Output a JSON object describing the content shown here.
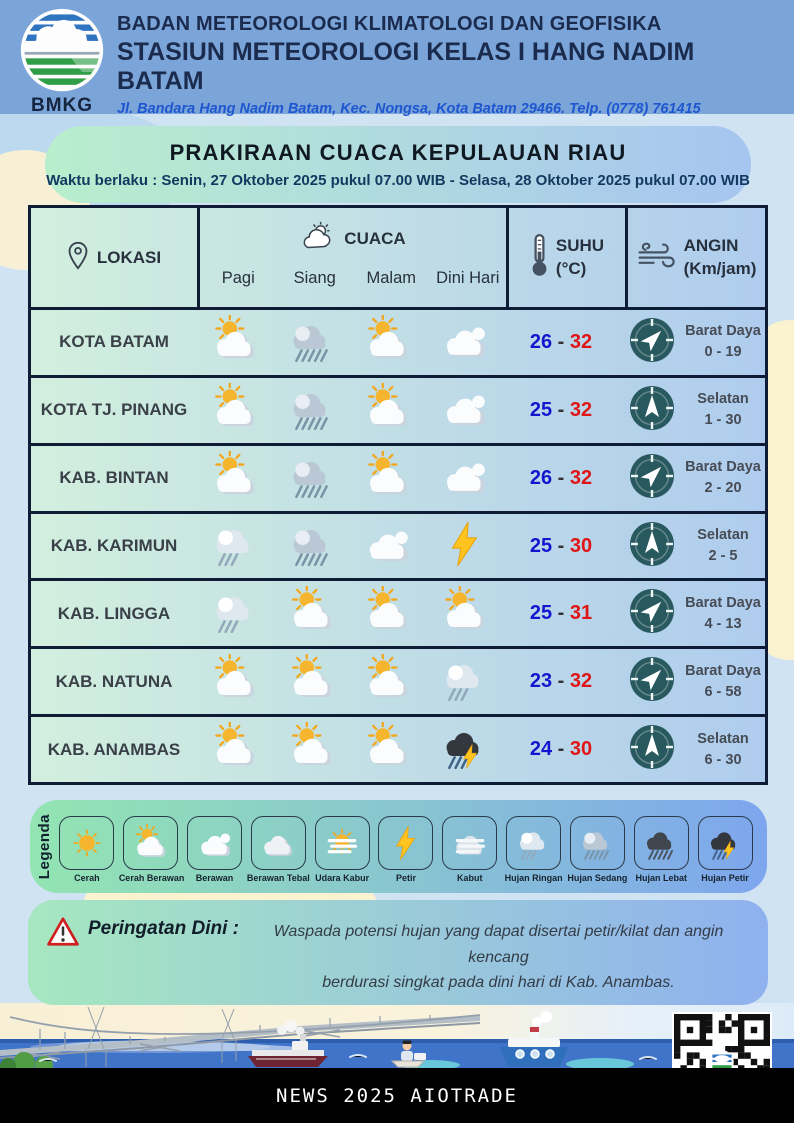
{
  "header": {
    "logo_label": "BMKG",
    "line1": "BADAN METEOROLOGI KLIMATOLOGI DAN GEOFISIKA",
    "line2": "STASIUN METEOROLOGI KELAS I HANG NADIM BATAM",
    "line3": "Jl. Bandara Hang Nadim Batam, Kec. Nongsa, Kota Batam 29466.  Telp. (0778) 761415"
  },
  "title": {
    "heading": "PRAKIRAAN CUACA KEPULAUAN RIAU",
    "validity": "Waktu berlaku : Senin, 27 Oktober 2025 pukul 07.00 WIB - Selasa, 28 Oktober 2025 pukul 07.00 WIB"
  },
  "table": {
    "location_header": "LOKASI",
    "weather_header": "CUACA",
    "periods": [
      "Pagi",
      "Siang",
      "Malam",
      "Dini Hari"
    ],
    "temp_header": "SUHU",
    "temp_unit": "(°C)",
    "wind_header": "ANGIN",
    "wind_unit": "(Km/jam)",
    "temp_separator": "-",
    "rows": [
      {
        "location": "KOTA BATAM",
        "icons": [
          "cerah-berawan",
          "hujan-sedang",
          "cerah-berawan",
          "berawan"
        ],
        "temp_min": "26",
        "temp_max": "32",
        "wind_dir": "Barat Daya",
        "wind_speed": "0 - 19",
        "wind_arrow": "NE"
      },
      {
        "location": "KOTA TJ. PINANG",
        "icons": [
          "cerah-berawan",
          "hujan-sedang",
          "cerah-berawan",
          "berawan"
        ],
        "temp_min": "25",
        "temp_max": "32",
        "wind_dir": "Selatan",
        "wind_speed": "1 - 30",
        "wind_arrow": "N"
      },
      {
        "location": "KAB. BINTAN",
        "icons": [
          "cerah-berawan",
          "hujan-sedang",
          "cerah-berawan",
          "berawan"
        ],
        "temp_min": "26",
        "temp_max": "32",
        "wind_dir": "Barat Daya",
        "wind_speed": "2 - 20",
        "wind_arrow": "NE"
      },
      {
        "location": "KAB. KARIMUN",
        "icons": [
          "hujan-ringan",
          "hujan-sedang",
          "berawan",
          "petir"
        ],
        "temp_min": "25",
        "temp_max": "30",
        "wind_dir": "Selatan",
        "wind_speed": "2 - 5",
        "wind_arrow": "N"
      },
      {
        "location": "KAB. LINGGA",
        "icons": [
          "hujan-ringan",
          "cerah-berawan",
          "cerah-berawan",
          "cerah-berawan"
        ],
        "temp_min": "25",
        "temp_max": "31",
        "wind_dir": "Barat Daya",
        "wind_speed": "4 - 13",
        "wind_arrow": "NE"
      },
      {
        "location": "KAB. NATUNA",
        "icons": [
          "cerah-berawan",
          "cerah-berawan",
          "cerah-berawan",
          "hujan-ringan"
        ],
        "temp_min": "23",
        "temp_max": "32",
        "wind_dir": "Barat Daya",
        "wind_speed": "6 - 58",
        "wind_arrow": "NE"
      },
      {
        "location": "KAB. ANAMBAS",
        "icons": [
          "cerah-berawan",
          "cerah-berawan",
          "cerah-berawan",
          "hujan-petir"
        ],
        "temp_min": "24",
        "temp_max": "30",
        "wind_dir": "Selatan",
        "wind_speed": "6 - 30",
        "wind_arrow": "N"
      }
    ]
  },
  "legend": {
    "label": "Legenda",
    "items": [
      {
        "name": "Cerah",
        "icon": "cerah"
      },
      {
        "name": "Cerah Berawan",
        "icon": "cerah-berawan"
      },
      {
        "name": "Berawan",
        "icon": "berawan"
      },
      {
        "name": "Berawan Tebal",
        "icon": "berawan-tebal"
      },
      {
        "name": "Udara Kabur",
        "icon": "udara-kabur"
      },
      {
        "name": "Petir",
        "icon": "petir"
      },
      {
        "name": "Kabut",
        "icon": "kabut"
      },
      {
        "name": "Hujan Ringan",
        "icon": "hujan-ringan"
      },
      {
        "name": "Hujan Sedang",
        "icon": "hujan-sedang"
      },
      {
        "name": "Hujan Lebat",
        "icon": "hujan-lebat"
      },
      {
        "name": "Hujan Petir",
        "icon": "hujan-petir"
      }
    ]
  },
  "warning": {
    "label": "Peringatan Dini :",
    "message_line1": "Waspada potensi hujan yang dapat disertai petir/kilat dan angin kencang",
    "message_line2": "berdurasi singkat pada dini hari di Kab. Anambas."
  },
  "footer": {
    "banner": "NEWS 2025 AIOTRADE"
  },
  "colors": {
    "header_band": "#7ba5d9",
    "page_bg": "#cfe3f3",
    "temp_min": "#1515cf",
    "temp_max": "#e01616",
    "compass": "#27595e",
    "accent_navy": "#13294b"
  }
}
